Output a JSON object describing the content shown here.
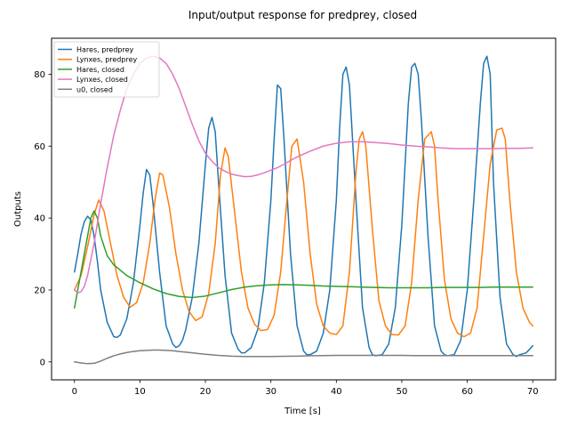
{
  "chart_data": {
    "type": "line",
    "title": "Input/output response for predprey, closed",
    "xlabel": "Time [s]",
    "ylabel": "Outputs",
    "xlim": [
      -3.5,
      73.5
    ],
    "ylim": [
      -5,
      90
    ],
    "xticks": [
      0,
      10,
      20,
      30,
      40,
      50,
      60,
      70
    ],
    "yticks": [
      0,
      20,
      40,
      60,
      80
    ],
    "grid": false,
    "legend_position": "top-left",
    "series": [
      {
        "name": "Hares, predprey",
        "color": "#1f77b4",
        "x": [
          0,
          0.5,
          1,
          1.5,
          2,
          2.5,
          3,
          3.5,
          4,
          5,
          6,
          6.5,
          7,
          8,
          9,
          10,
          10.5,
          11,
          11.5,
          12,
          13,
          14,
          15,
          15.5,
          16,
          16.5,
          17,
          18,
          19,
          20,
          20.5,
          21,
          21.5,
          22,
          23,
          24,
          25,
          25.5,
          26,
          27,
          28,
          29,
          30,
          30.5,
          31,
          31.5,
          32,
          33,
          34,
          35,
          35.5,
          36,
          37,
          38,
          39,
          40,
          40.5,
          41,
          41.5,
          42,
          43,
          44,
          45,
          45.5,
          46,
          47,
          48,
          49,
          50,
          51,
          51.5,
          52,
          52.5,
          53,
          54,
          55,
          56,
          56.5,
          57,
          58,
          59,
          60,
          61,
          62,
          62.5,
          63,
          63.5,
          64,
          65,
          66,
          67,
          67.5,
          68,
          69,
          70
        ],
        "y": [
          25,
          30,
          35.5,
          39,
          40.5,
          39.5,
          35,
          28,
          20,
          11,
          7,
          6.8,
          7.5,
          12,
          22,
          38,
          47,
          53.5,
          52,
          44,
          25,
          10,
          5,
          4,
          4.5,
          6,
          9,
          18,
          33,
          55,
          65,
          68,
          64,
          50,
          24,
          8,
          3.5,
          2.5,
          2.5,
          4,
          9,
          22,
          45,
          62,
          77,
          76,
          62,
          30,
          10,
          3,
          2,
          2,
          3,
          8,
          20,
          45,
          65,
          80,
          82,
          77,
          45,
          15,
          4,
          2,
          1.7,
          2,
          5,
          15,
          38,
          72,
          82,
          83,
          80,
          67,
          35,
          10,
          3,
          2,
          1.7,
          2,
          6,
          20,
          45,
          72,
          83,
          85,
          80,
          50,
          18,
          5,
          2,
          1.5,
          2,
          2.5,
          4.5
        ]
      },
      {
        "name": "Lynxes, predprey",
        "color": "#ff7f0e",
        "x": [
          0,
          1,
          2,
          3,
          3.7,
          4.5,
          5.5,
          6.5,
          7.5,
          8.5,
          9.5,
          10.5,
          11.5,
          12.3,
          13,
          13.5,
          14.5,
          15.5,
          16.5,
          17.5,
          18.5,
          19.5,
          20.5,
          21.5,
          22.3,
          23,
          23.5,
          24.5,
          25.5,
          26.5,
          27.5,
          28.5,
          29.5,
          30.5,
          31.5,
          32.5,
          33.2,
          34,
          35,
          36,
          37,
          38,
          39,
          40,
          41,
          42,
          43,
          43.5,
          44,
          44.5,
          45.5,
          46.5,
          47.5,
          48.5,
          49.5,
          50.5,
          51.5,
          52.5,
          53.5,
          54.5,
          55,
          55.5,
          56.5,
          57.5,
          58.5,
          59.5,
          60.5,
          61.5,
          62.5,
          63.5,
          64.5,
          65.3,
          65.8,
          66.5,
          67.5,
          68.5,
          69.5,
          70
        ],
        "y": [
          20,
          24,
          32,
          41,
          45,
          42,
          33,
          24,
          18,
          15.2,
          16.5,
          22,
          33,
          45,
          52.5,
          52,
          43,
          30,
          20,
          14,
          11.5,
          12.5,
          19,
          33,
          52,
          59.5,
          57,
          41,
          25,
          15,
          10.5,
          8.7,
          9,
          13,
          25,
          46,
          60,
          62,
          50,
          30,
          16,
          10,
          8,
          7.6,
          10,
          25,
          53,
          62,
          64,
          60,
          37,
          17,
          10,
          7.6,
          7.5,
          10,
          22,
          45,
          62,
          64,
          60,
          46,
          23,
          12,
          8,
          7,
          8,
          15,
          35,
          55,
          64.5,
          65,
          62,
          45,
          25,
          15,
          11,
          10
        ]
      },
      {
        "name": "Hares, closed",
        "color": "#2ca02c",
        "x": [
          0,
          1,
          2,
          2.5,
          3,
          3.5,
          4,
          5,
          6,
          8,
          10,
          12,
          14,
          16,
          18,
          20,
          22,
          24,
          26,
          28,
          30,
          32,
          34,
          36,
          38,
          40,
          42,
          44,
          46,
          48,
          50,
          52,
          54,
          56,
          58,
          60,
          62,
          64,
          66,
          68,
          70
        ],
        "y": [
          15,
          25,
          35,
          40,
          42,
          40,
          35,
          29.5,
          27,
          24,
          22,
          20.3,
          19,
          18.2,
          17.9,
          18.3,
          19.2,
          20.1,
          20.8,
          21.2,
          21.4,
          21.5,
          21.4,
          21.3,
          21.1,
          21,
          20.9,
          20.8,
          20.7,
          20.6,
          20.6,
          20.6,
          20.6,
          20.7,
          20.7,
          20.7,
          20.7,
          20.8,
          20.8,
          20.8,
          20.8
        ]
      },
      {
        "name": "Lynxes, closed",
        "color": "#e377c2",
        "x": [
          0,
          0.5,
          1,
          1.5,
          2,
          3,
          4,
          5,
          6,
          7,
          8,
          9,
          10,
          11,
          12,
          13,
          14,
          15,
          16,
          17,
          18,
          19,
          20,
          21,
          22,
          23,
          24,
          25,
          26,
          27,
          28,
          29,
          30,
          31,
          32,
          33,
          34,
          35,
          36,
          38,
          40,
          42,
          44,
          46,
          48,
          50,
          52,
          54,
          56,
          58,
          60,
          62,
          64,
          66,
          68,
          70
        ],
        "y": [
          20,
          19.2,
          19.5,
          21,
          24,
          33,
          44,
          54,
          63,
          70,
          76,
          80,
          83,
          84.5,
          85,
          84.5,
          83,
          80,
          76,
          71,
          66,
          61.5,
          58,
          55.8,
          54,
          53,
          52.2,
          51.8,
          51.5,
          51.6,
          52,
          52.6,
          53.3,
          54,
          55,
          56,
          57,
          57.8,
          58.6,
          60,
          60.8,
          61.2,
          61.2,
          61,
          60.7,
          60.3,
          60,
          59.8,
          59.5,
          59.3,
          59.3,
          59.3,
          59.3,
          59.4,
          59.4,
          59.5
        ]
      },
      {
        "name": "u0, closed",
        "color": "#7f7f7f",
        "x": [
          0,
          1,
          2,
          3,
          4,
          5,
          6,
          7,
          8,
          9,
          10,
          11,
          12,
          13,
          14,
          15,
          16,
          17,
          18,
          19,
          20,
          22,
          24,
          26,
          28,
          30,
          32,
          34,
          36,
          38,
          40,
          42,
          44,
          46,
          48,
          50,
          52,
          54,
          56,
          58,
          60,
          62,
          64,
          66,
          68,
          70
        ],
        "y": [
          0,
          -0.3,
          -0.5,
          -0.4,
          0.2,
          1,
          1.7,
          2.2,
          2.6,
          2.9,
          3.1,
          3.2,
          3.3,
          3.3,
          3.2,
          3.1,
          2.9,
          2.7,
          2.5,
          2.3,
          2.1,
          1.8,
          1.6,
          1.5,
          1.5,
          1.5,
          1.55,
          1.6,
          1.7,
          1.75,
          1.8,
          1.8,
          1.8,
          1.8,
          1.8,
          1.8,
          1.75,
          1.75,
          1.75,
          1.75,
          1.75,
          1.75,
          1.75,
          1.75,
          1.75,
          1.75
        ]
      }
    ]
  }
}
